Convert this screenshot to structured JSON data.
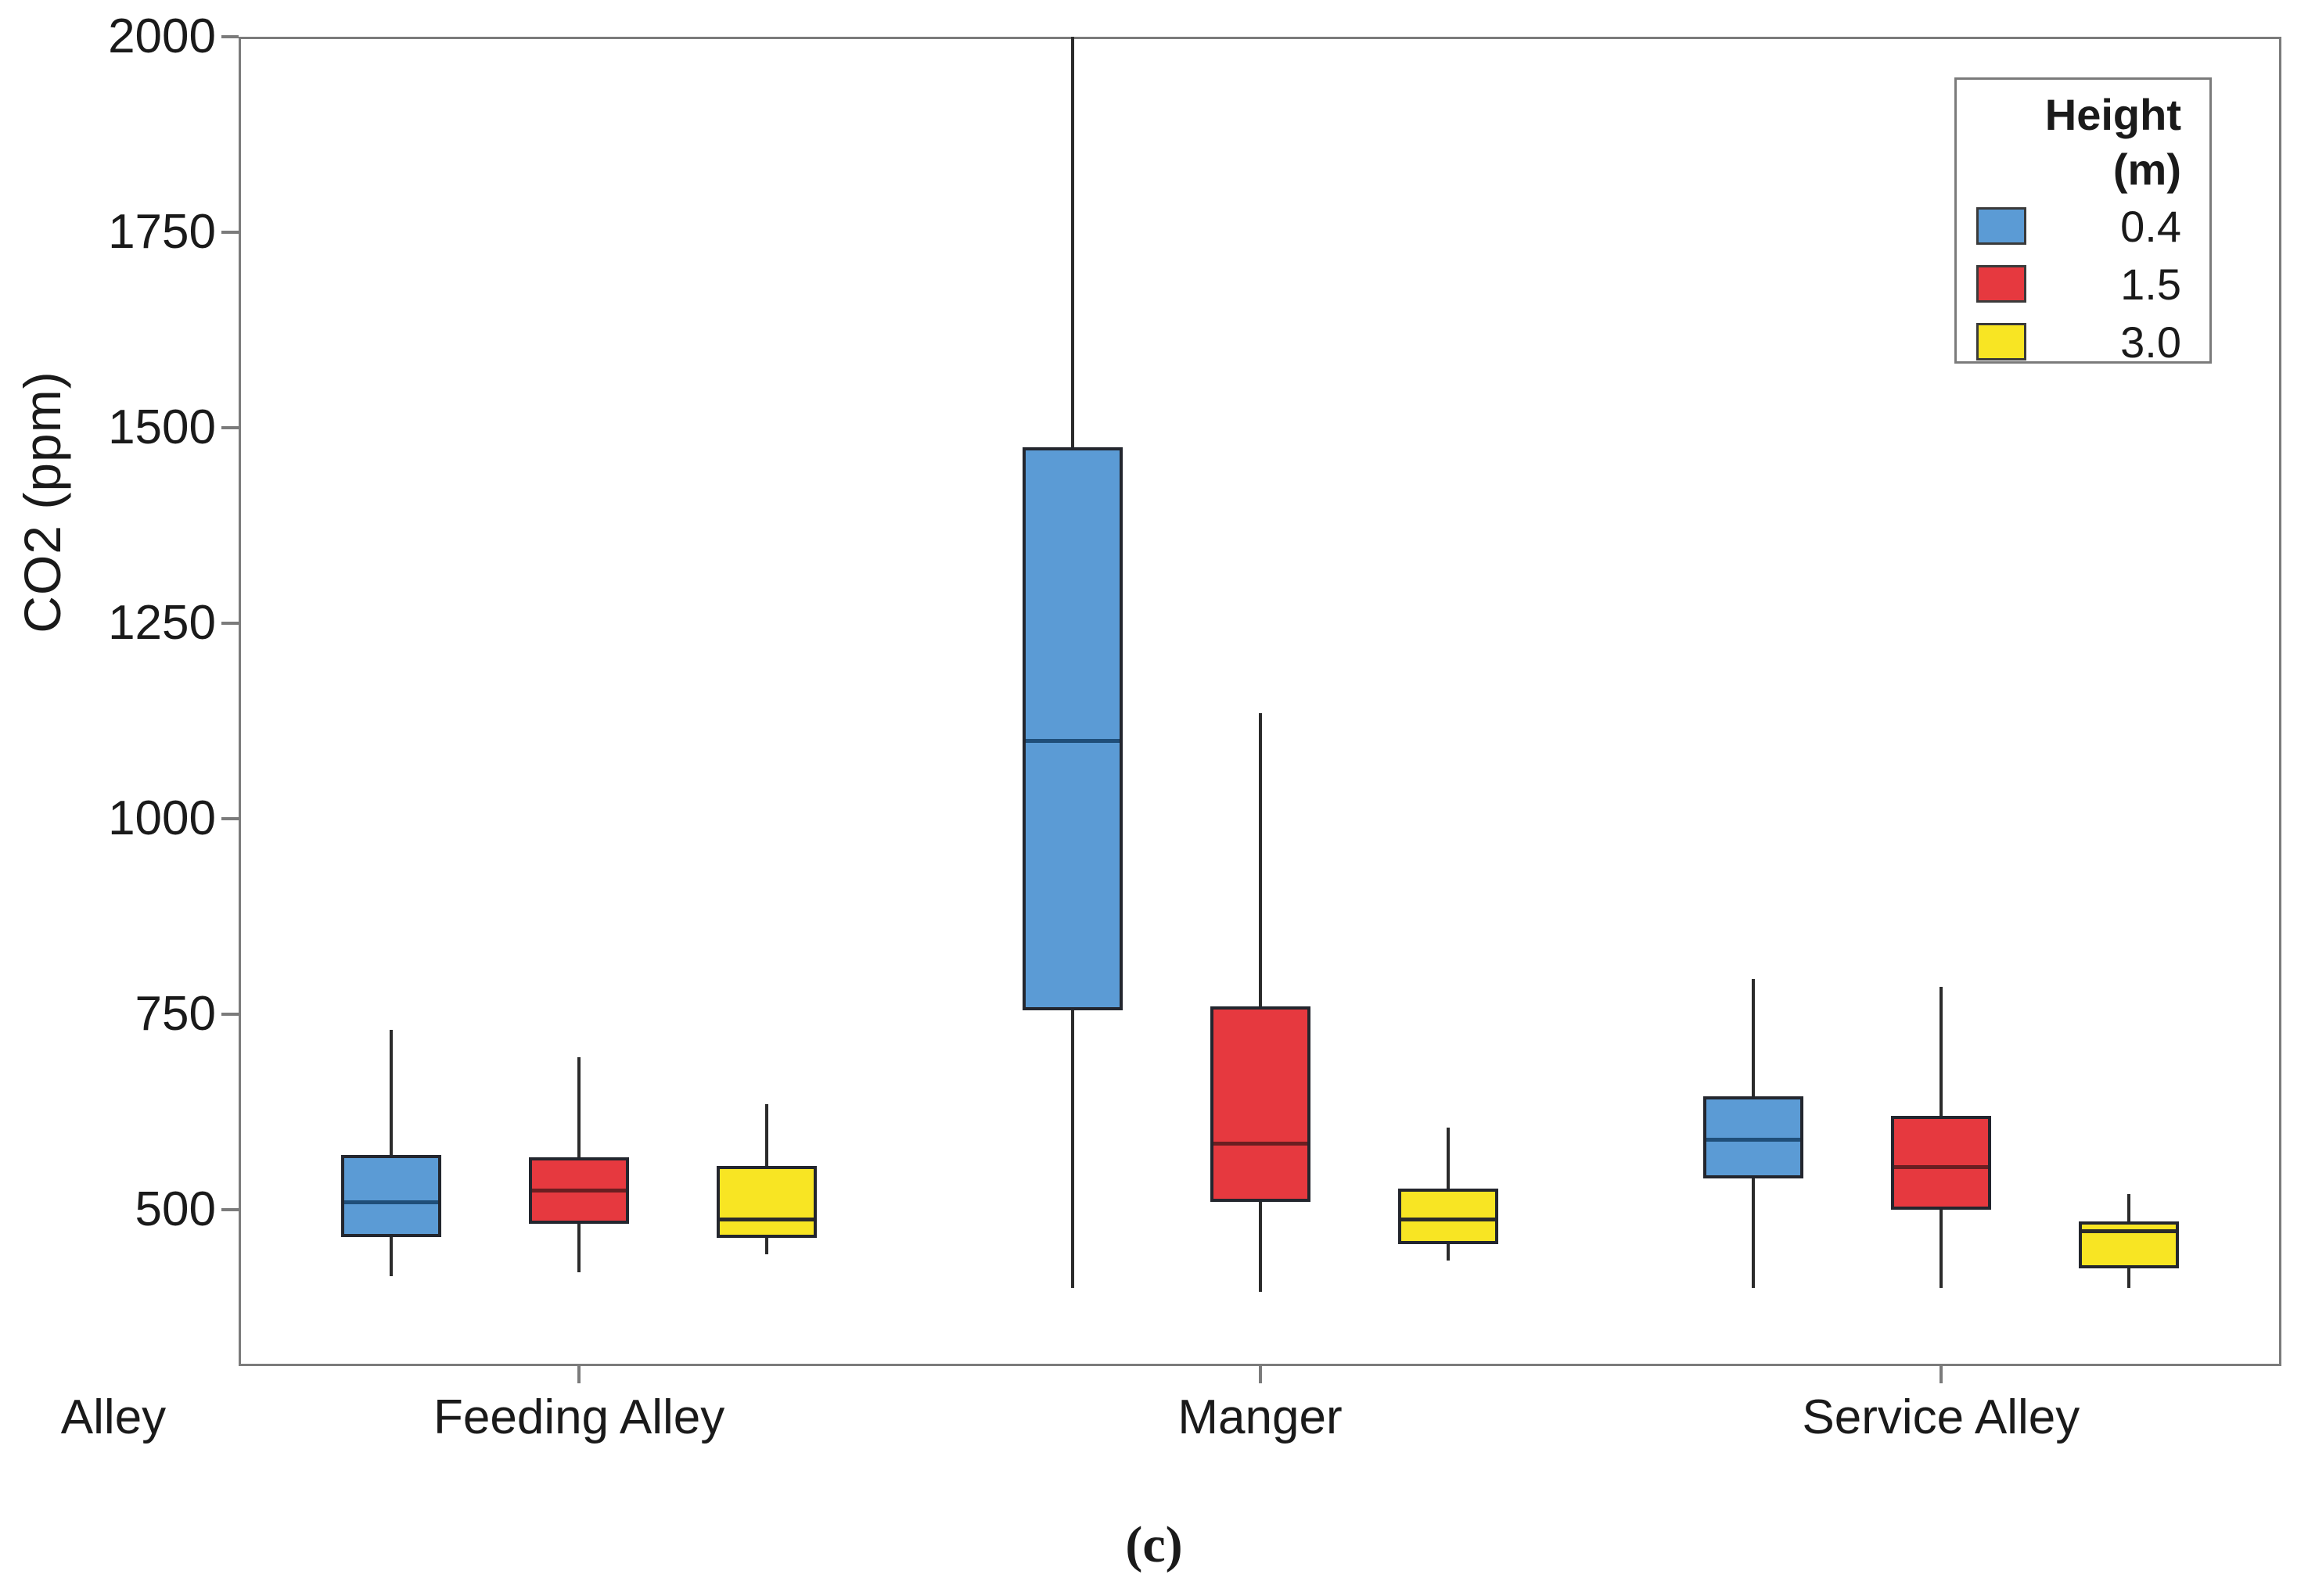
{
  "figure": {
    "caption": "(c)"
  },
  "chart_data": {
    "type": "box",
    "title": "",
    "xlabel": "Alley",
    "ylabel": "CO2 (ppm)",
    "ylim": [
      300,
      2000
    ],
    "yticks": [
      500,
      750,
      1000,
      1250,
      1500,
      1750,
      2000
    ],
    "categories": [
      "Feeding Alley",
      "Manger",
      "Service Alley"
    ],
    "grid": "off",
    "legend": {
      "title_line1": "Height",
      "title_line2": "(m)",
      "position": "top-right"
    },
    "series": [
      {
        "name": "0.4",
        "color": "#5B9BD5",
        "median_color": "#1F4E79",
        "boxes": [
          {
            "category": "Feeding Alley",
            "whisker_low": 415,
            "q1": 465,
            "median": 510,
            "q3": 570,
            "whisker_high": 730
          },
          {
            "category": "Manger",
            "whisker_low": 400,
            "q1": 755,
            "median": 1100,
            "q3": 1475,
            "whisker_high": 2000
          },
          {
            "category": "Service Alley",
            "whisker_low": 400,
            "q1": 540,
            "median": 590,
            "q3": 645,
            "whisker_high": 795
          }
        ]
      },
      {
        "name": "1.5",
        "color": "#E6393F",
        "median_color": "#6B1E21",
        "boxes": [
          {
            "category": "Feeding Alley",
            "whisker_low": 420,
            "q1": 482,
            "median": 525,
            "q3": 567,
            "whisker_high": 695
          },
          {
            "category": "Manger",
            "whisker_low": 395,
            "q1": 510,
            "median": 585,
            "q3": 760,
            "whisker_high": 1135
          },
          {
            "category": "Service Alley",
            "whisker_low": 400,
            "q1": 500,
            "median": 555,
            "q3": 620,
            "whisker_high": 785
          }
        ]
      },
      {
        "name": "3.0",
        "color": "#F8E523",
        "median_color": "#2b2b2b",
        "boxes": [
          {
            "category": "Feeding Alley",
            "whisker_low": 443,
            "q1": 464,
            "median": 488,
            "q3": 556,
            "whisker_high": 635
          },
          {
            "category": "Manger",
            "whisker_low": 435,
            "q1": 456,
            "median": 488,
            "q3": 527,
            "whisker_high": 605
          },
          {
            "category": "Service Alley",
            "whisker_low": 400,
            "q1": 425,
            "median": 473,
            "q3": 485,
            "whisker_high": 520
          }
        ]
      }
    ]
  }
}
